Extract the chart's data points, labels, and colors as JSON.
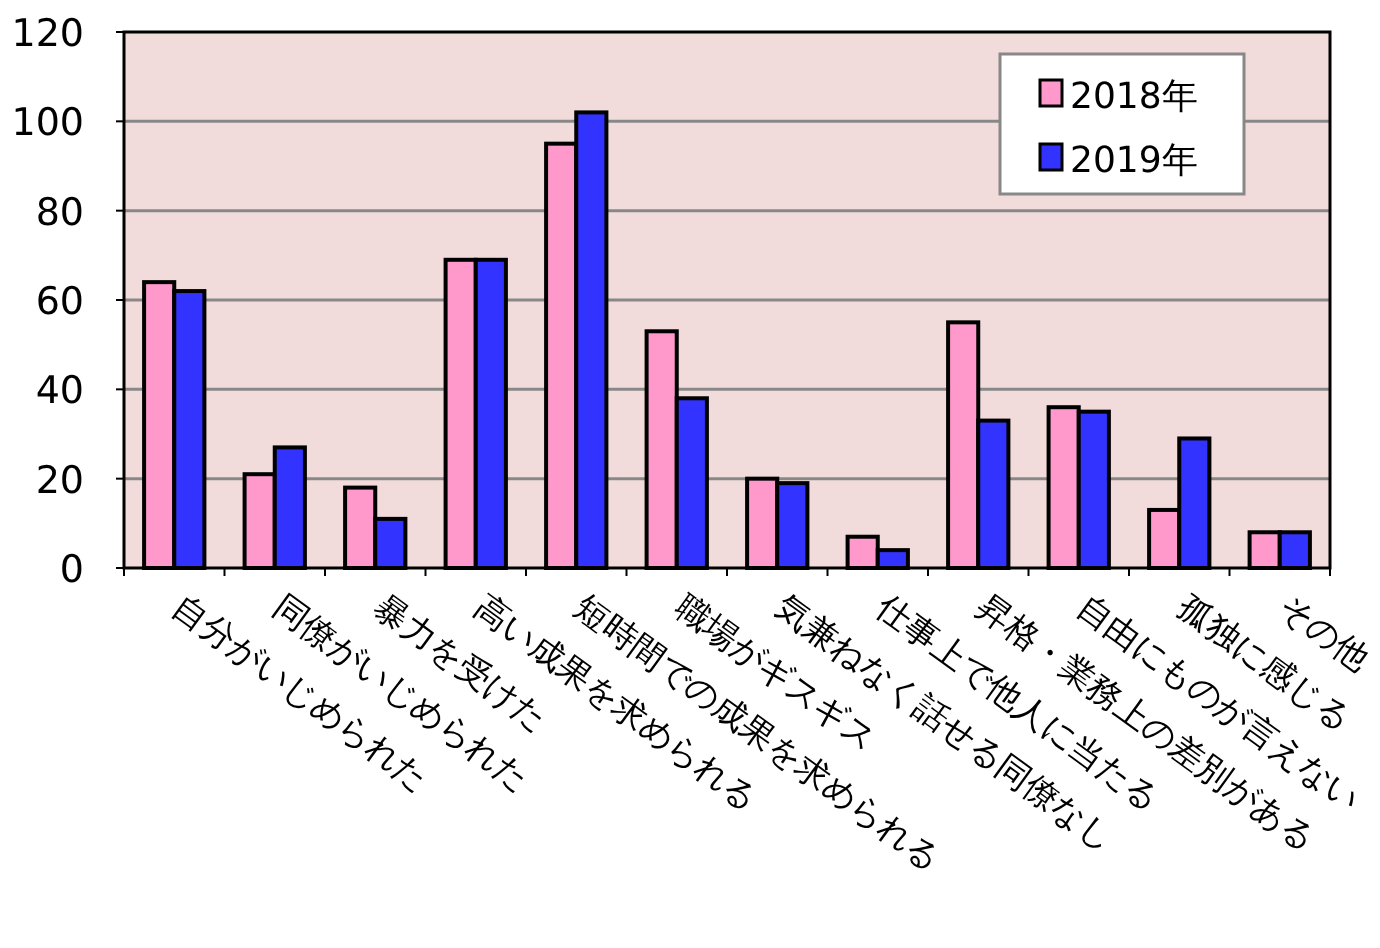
{
  "chart_data": {
    "type": "bar",
    "categories": [
      "自分がいじめられた",
      "同僚がいじめられた",
      "暴力を受けた",
      "高い成果を求められる",
      "短時間での成果を求められる",
      "職場がギスギス",
      "気兼ねなく話せる同僚なし",
      "仕事上で他人に当たる",
      "昇格・業務上の差別がある",
      "自由にものが言えない",
      "孤独に感じる",
      "その他"
    ],
    "series": [
      {
        "name": "2018年",
        "color": "#ff99cc",
        "values": [
          64,
          21,
          18,
          69,
          95,
          53,
          20,
          7,
          55,
          36,
          13,
          8
        ]
      },
      {
        "name": "2019年",
        "color": "#3333ff",
        "values": [
          62,
          27,
          11,
          69,
          102,
          38,
          19,
          4,
          33,
          35,
          29,
          8
        ]
      }
    ],
    "ylim": [
      0,
      120
    ],
    "yticks": [
      0,
      20,
      40,
      60,
      80,
      100,
      120
    ],
    "grid": "y",
    "legend": "top right"
  }
}
